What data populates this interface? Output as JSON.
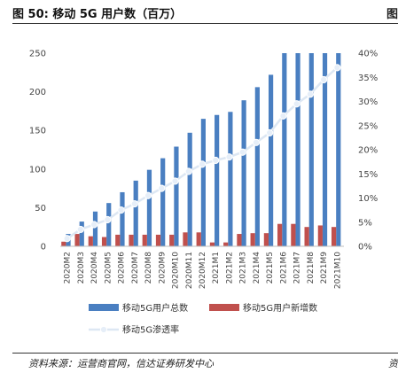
{
  "title": "图 50:  移动 5G 用户数（百万）",
  "title_right": "图",
  "source": "资料来源：运营商官网，信达证券研发中心",
  "source_right": "资",
  "colors": {
    "bar_total": "#4a7fc1",
    "bar_new": "#c0504d",
    "line_rate": "#dde7f3",
    "marker_rate": "#e6eef8"
  },
  "chart_data": {
    "type": "bar",
    "categories": [
      "2020M2",
      "2020M3",
      "2020M4",
      "2020M5",
      "2020M6",
      "2020M7",
      "2020M8",
      "2020M9",
      "2020M10",
      "2020M11",
      "2020M12",
      "2021M1",
      "2021M2",
      "2021M3",
      "2021M4",
      "2021M5",
      "2021M6",
      "2021M7",
      "2021M8",
      "2021M9",
      "2021M10"
    ],
    "series": [
      {
        "name": "移动5G用户总数",
        "kind": "bar",
        "axis": "left",
        "values": [
          16,
          32,
          45,
          56,
          70,
          85,
          99,
          114,
          129,
          147,
          165,
          170,
          174,
          189,
          206,
          222,
          250,
          250,
          250,
          250,
          250
        ]
      },
      {
        "name": "移动5G用户新增数",
        "kind": "bar",
        "axis": "left",
        "values": [
          6,
          16,
          13,
          12,
          15,
          15,
          15,
          15,
          15,
          18,
          18,
          5,
          5,
          16,
          17,
          17,
          29,
          29,
          25,
          27,
          25
        ]
      },
      {
        "name": "移动5G渗透率",
        "kind": "line",
        "axis": "right",
        "values": [
          1.6,
          3.5,
          4.5,
          5.5,
          7.5,
          8.8,
          10.5,
          12.0,
          13.5,
          15.5,
          17.0,
          17.8,
          18.5,
          19.5,
          21.5,
          23.5,
          27.0,
          29.5,
          31.5,
          34.5,
          37.0
        ]
      }
    ],
    "ylim_left": [
      0,
      250
    ],
    "yticks_left": [
      "0",
      "50",
      "100",
      "150",
      "200",
      "250"
    ],
    "ylim_right": [
      0,
      40
    ],
    "yticks_right": [
      "0%",
      "5%",
      "10%",
      "15%",
      "20%",
      "25%",
      "30%",
      "35%",
      "40%"
    ],
    "grid": false,
    "legend_position": "bottom"
  }
}
